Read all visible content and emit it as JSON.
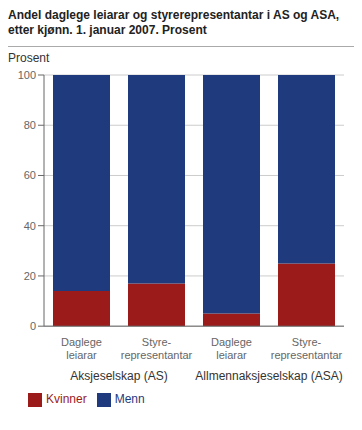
{
  "chart_data": {
    "type": "bar",
    "title": "Andel daglege leiarar og styrerepresentantar i AS og ASA,\netter kjønn. 1. januar 2007. Prosent",
    "y_label": "Prosent",
    "categories": [
      "Daglege\nleiarar",
      "Styre-\nrepresentantar",
      "Daglege\nleiarar",
      "Styre-\nrepresentantar"
    ],
    "series": [
      {
        "name": "Kvinner",
        "color": "#9B1B1B",
        "values": [
          14,
          17,
          5,
          25
        ]
      },
      {
        "name": "Menn",
        "color": "#1F3A7D",
        "values": [
          86,
          83,
          95,
          75
        ]
      }
    ],
    "annotations": [
      {
        "text": "Aksjeselskap (AS)",
        "categories": [
          0,
          1
        ]
      },
      {
        "text": "Allmennaksjeselskap (ASA)",
        "categories": [
          2,
          3
        ]
      }
    ],
    "stacked": true,
    "ylim": [
      0,
      100
    ],
    "yticks": [
      0,
      20,
      40,
      60,
      80,
      100
    ],
    "grid": true,
    "legend": "lower left"
  }
}
